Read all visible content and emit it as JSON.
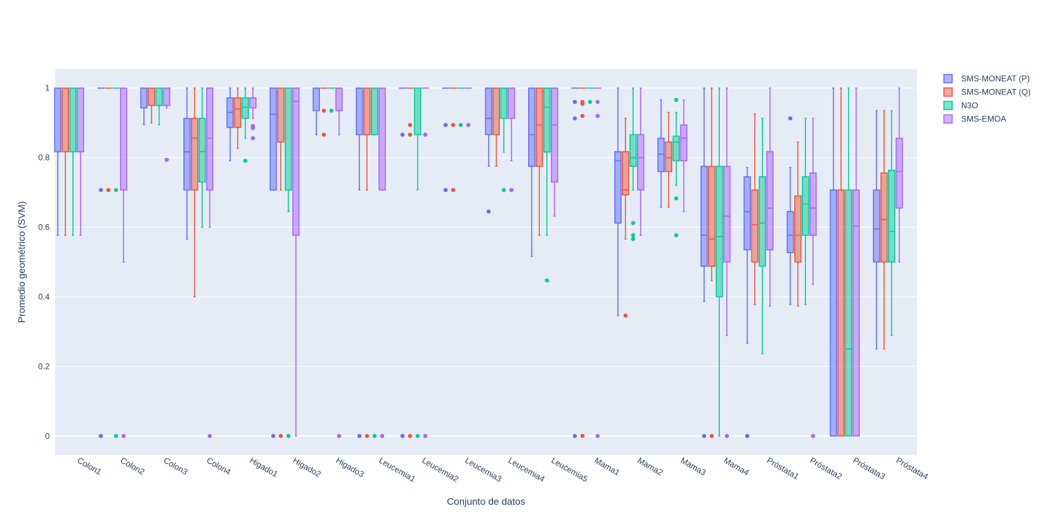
{
  "chart_data": {
    "type": "box",
    "xlabel": "Conjunto de datos",
    "ylabel": "Promedio geométrico (SVM)",
    "ylim": [
      -0.055,
      1.055
    ],
    "yticks": [
      0,
      0.2,
      0.4,
      0.6,
      0.8,
      1
    ],
    "ytick_labels": [
      "0",
      "0.2",
      "0.4",
      "0.6",
      "0.8",
      "1"
    ],
    "grid": true,
    "legend_position": "top-right",
    "categories": [
      "Colon1",
      "Colon2",
      "Colon3",
      "Colon4",
      "Higado1",
      "Higado2",
      "Higado3",
      "Leucemia1",
      "Leucemia2",
      "Leucemia3",
      "Leucemia4",
      "Leucemia5",
      "Mama1",
      "Mama2",
      "Mama3",
      "Mama4",
      "Próstata1",
      "Próstata2",
      "Próstata3",
      "Próstata4"
    ],
    "series": [
      {
        "name": "SMS-MONEAT (P)",
        "color": "#636efa",
        "boxes": [
          {
            "min": 0.577,
            "q1": 0.817,
            "median": 1,
            "q3": 1,
            "max": 1,
            "outliers": []
          },
          {
            "min": 1,
            "q1": 1,
            "median": 1,
            "q3": 1,
            "max": 1,
            "outliers": [
              0.707,
              0
            ]
          },
          {
            "min": 0.895,
            "q1": 0.943,
            "median": 1,
            "q3": 1,
            "max": 1,
            "outliers": []
          },
          {
            "min": 0.566,
            "q1": 0.707,
            "median": 0.817,
            "q3": 0.913,
            "max": 1,
            "outliers": []
          },
          {
            "min": 0.791,
            "q1": 0.887,
            "median": 0.93,
            "q3": 0.972,
            "max": 1,
            "outliers": []
          },
          {
            "min": 0.707,
            "q1": 0.707,
            "median": 0.925,
            "q3": 1,
            "max": 1,
            "outliers": [
              0
            ]
          },
          {
            "min": 0.866,
            "q1": 0.935,
            "median": 1,
            "q3": 1,
            "max": 1,
            "outliers": []
          },
          {
            "min": 0.707,
            "q1": 0.866,
            "median": 1,
            "q3": 1,
            "max": 1,
            "outliers": [
              0
            ]
          },
          {
            "min": 1,
            "q1": 1,
            "median": 1,
            "q3": 1,
            "max": 1,
            "outliers": [
              0.866,
              0
            ]
          },
          {
            "min": 1,
            "q1": 1,
            "median": 1,
            "q3": 1,
            "max": 1,
            "outliers": [
              0.894,
              0.707
            ]
          },
          {
            "min": 0.775,
            "q1": 0.866,
            "median": 0.913,
            "q3": 1,
            "max": 1,
            "outliers": [
              0.645
            ]
          },
          {
            "min": 0.516,
            "q1": 0.775,
            "median": 0.866,
            "q3": 1,
            "max": 1,
            "outliers": []
          },
          {
            "min": 1,
            "q1": 1,
            "median": 1,
            "q3": 1,
            "max": 1,
            "outliers": [
              0.96,
              0.913,
              0
            ]
          },
          {
            "min": 0.346,
            "q1": 0.612,
            "median": 0.791,
            "q3": 0.817,
            "max": 1,
            "outliers": []
          },
          {
            "min": 0.658,
            "q1": 0.76,
            "median": 0.81,
            "q3": 0.856,
            "max": 0.966,
            "outliers": []
          },
          {
            "min": 0.387,
            "q1": 0.488,
            "median": 0.577,
            "q3": 0.775,
            "max": 1,
            "outliers": [
              0
            ]
          },
          {
            "min": 0.267,
            "q1": 0.535,
            "median": 0.645,
            "q3": 0.745,
            "max": 0.772,
            "outliers": [
              0
            ]
          },
          {
            "min": 0.378,
            "q1": 0.527,
            "median": 0.577,
            "q3": 0.645,
            "max": 0.772,
            "outliers": [
              0.913
            ]
          },
          {
            "min": 0,
            "q1": 0,
            "median": 0.707,
            "q3": 0.707,
            "max": 1,
            "outliers": []
          },
          {
            "min": 0.25,
            "q1": 0.5,
            "median": 0.595,
            "q3": 0.707,
            "max": 0.935,
            "outliers": []
          }
        ]
      },
      {
        "name": "SMS-MONEAT (Q)",
        "color": "#ef553b",
        "boxes": [
          {
            "min": 0.577,
            "q1": 0.817,
            "median": 1,
            "q3": 1,
            "max": 1,
            "outliers": []
          },
          {
            "min": 1,
            "q1": 1,
            "median": 1,
            "q3": 1,
            "max": 1,
            "outliers": [
              0.707
            ]
          },
          {
            "min": 0.9,
            "q1": 0.95,
            "median": 1,
            "q3": 1,
            "max": 1,
            "outliers": []
          },
          {
            "min": 0.4,
            "q1": 0.707,
            "median": 0.856,
            "q3": 0.913,
            "max": 1,
            "outliers": []
          },
          {
            "min": 0.827,
            "q1": 0.887,
            "median": 0.94,
            "q3": 0.972,
            "max": 1,
            "outliers": []
          },
          {
            "min": 0.707,
            "q1": 0.845,
            "median": 1,
            "q3": 1,
            "max": 1,
            "outliers": [
              0
            ]
          },
          {
            "min": 1,
            "q1": 1,
            "median": 1,
            "q3": 1,
            "max": 1,
            "outliers": [
              0.935,
              0.866
            ]
          },
          {
            "min": 0.707,
            "q1": 0.866,
            "median": 1,
            "q3": 1,
            "max": 1,
            "outliers": [
              0
            ]
          },
          {
            "min": 1,
            "q1": 1,
            "median": 1,
            "q3": 1,
            "max": 1,
            "outliers": [
              0.894,
              0.866,
              0
            ]
          },
          {
            "min": 1,
            "q1": 1,
            "median": 1,
            "q3": 1,
            "max": 1,
            "outliers": [
              0.894,
              0.707
            ]
          },
          {
            "min": 0.775,
            "q1": 0.866,
            "median": 1,
            "q3": 1,
            "max": 1,
            "outliers": []
          },
          {
            "min": 0.577,
            "q1": 0.775,
            "median": 0.894,
            "q3": 1,
            "max": 1,
            "outliers": []
          },
          {
            "min": 1,
            "q1": 1,
            "median": 1,
            "q3": 1,
            "max": 1,
            "outliers": [
              0.96,
              0.955,
              0.92,
              0
            ]
          },
          {
            "min": 0.566,
            "q1": 0.693,
            "median": 0.707,
            "q3": 0.817,
            "max": 0.913,
            "outliers": [
              0.346
            ]
          },
          {
            "min": 0.658,
            "q1": 0.76,
            "median": 0.8,
            "q3": 0.845,
            "max": 0.93,
            "outliers": []
          },
          {
            "min": 0.447,
            "q1": 0.488,
            "median": 0.566,
            "q3": 0.775,
            "max": 1,
            "outliers": [
              0
            ]
          },
          {
            "min": 0.378,
            "q1": 0.5,
            "median": 0.607,
            "q3": 0.707,
            "max": 0.926,
            "outliers": []
          },
          {
            "min": 0.373,
            "q1": 0.5,
            "median": 0.577,
            "q3": 0.69,
            "max": 0.845,
            "outliers": []
          },
          {
            "min": 0,
            "q1": 0,
            "median": 0.707,
            "q3": 0.707,
            "max": 1,
            "outliers": []
          },
          {
            "min": 0.25,
            "q1": 0.5,
            "median": 0.622,
            "q3": 0.756,
            "max": 0.935,
            "outliers": []
          }
        ]
      },
      {
        "name": "N3O",
        "color": "#00cc96",
        "boxes": [
          {
            "min": 0.577,
            "q1": 0.817,
            "median": 1,
            "q3": 1,
            "max": 1,
            "outliers": []
          },
          {
            "min": 1,
            "q1": 1,
            "median": 1,
            "q3": 1,
            "max": 1,
            "outliers": [
              0.707,
              0
            ]
          },
          {
            "min": 0.895,
            "q1": 0.95,
            "median": 1,
            "q3": 1,
            "max": 1,
            "outliers": []
          },
          {
            "min": 0.6,
            "q1": 0.73,
            "median": 0.817,
            "q3": 0.913,
            "max": 1,
            "outliers": []
          },
          {
            "min": 0.856,
            "q1": 0.913,
            "median": 0.945,
            "q3": 0.972,
            "max": 1,
            "outliers": [
              0.791
            ]
          },
          {
            "min": 0.645,
            "q1": 0.707,
            "median": 1,
            "q3": 1,
            "max": 1,
            "outliers": [
              0
            ]
          },
          {
            "min": 1,
            "q1": 1,
            "median": 1,
            "q3": 1,
            "max": 1,
            "outliers": [
              0.935
            ]
          },
          {
            "min": 0.866,
            "q1": 0.866,
            "median": 1,
            "q3": 1,
            "max": 1,
            "outliers": [
              0
            ]
          },
          {
            "min": 0.707,
            "q1": 0.866,
            "median": 1,
            "q3": 1,
            "max": 1,
            "outliers": [
              0
            ]
          },
          {
            "min": 1,
            "q1": 1,
            "median": 1,
            "q3": 1,
            "max": 1,
            "outliers": [
              0.894
            ]
          },
          {
            "min": 0.816,
            "q1": 0.913,
            "median": 1,
            "q3": 1,
            "max": 1,
            "outliers": [
              0.707
            ]
          },
          {
            "min": 0.577,
            "q1": 0.816,
            "median": 0.945,
            "q3": 1,
            "max": 1,
            "outliers": [
              0.447
            ]
          },
          {
            "min": 1,
            "q1": 1,
            "median": 1,
            "q3": 1,
            "max": 1,
            "outliers": [
              0.96
            ]
          },
          {
            "min": 0.707,
            "q1": 0.775,
            "median": 0.8,
            "q3": 0.866,
            "max": 1,
            "outliers": [
              0.612,
              0.577,
              0.566
            ]
          },
          {
            "min": 0.72,
            "q1": 0.791,
            "median": 0.845,
            "q3": 0.862,
            "max": 0.93,
            "outliers": [
              0.966,
              0.683,
              0.577
            ]
          },
          {
            "min": 0,
            "q1": 0.4,
            "median": 0.573,
            "q3": 0.775,
            "max": 1,
            "outliers": []
          },
          {
            "min": 0.236,
            "q1": 0.488,
            "median": 0.612,
            "q3": 0.745,
            "max": 0.913,
            "outliers": []
          },
          {
            "min": 0.378,
            "q1": 0.577,
            "median": 0.667,
            "q3": 0.745,
            "max": 0.913,
            "outliers": []
          },
          {
            "min": 0,
            "q1": 0,
            "median": 0.25,
            "q3": 0.707,
            "max": 1,
            "outliers": []
          },
          {
            "min": 0.289,
            "q1": 0.5,
            "median": 0.588,
            "q3": 0.764,
            "max": 0.935,
            "outliers": []
          }
        ]
      },
      {
        "name": "SMS-EMOA",
        "color": "#ab63fa",
        "boxes": [
          {
            "min": 0.577,
            "q1": 0.817,
            "median": 1,
            "q3": 1,
            "max": 1,
            "outliers": []
          },
          {
            "min": 0.5,
            "q1": 0.707,
            "median": 1,
            "q3": 1,
            "max": 1,
            "outliers": [
              0
            ]
          },
          {
            "min": 0.943,
            "q1": 0.95,
            "median": 1,
            "q3": 1,
            "max": 1,
            "outliers": [
              0.794
            ]
          },
          {
            "min": 0.6,
            "q1": 0.707,
            "median": 0.856,
            "q3": 1,
            "max": 1,
            "outliers": [
              0
            ]
          },
          {
            "min": 0.913,
            "q1": 0.943,
            "median": 0.972,
            "q3": 0.972,
            "max": 1,
            "outliers": [
              0.891,
              0.885,
              0.856
            ]
          },
          {
            "min": 0,
            "q1": 0.577,
            "median": 0.962,
            "q3": 1,
            "max": 1,
            "outliers": []
          },
          {
            "min": 0.866,
            "q1": 0.935,
            "median": 1,
            "q3": 1,
            "max": 1,
            "outliers": [
              0
            ]
          },
          {
            "min": 0.707,
            "q1": 0.707,
            "median": 1,
            "q3": 1,
            "max": 1,
            "outliers": [
              0
            ]
          },
          {
            "min": 1,
            "q1": 1,
            "median": 1,
            "q3": 1,
            "max": 1,
            "outliers": [
              0.866,
              0
            ]
          },
          {
            "min": 1,
            "q1": 1,
            "median": 1,
            "q3": 1,
            "max": 1,
            "outliers": [
              0.894
            ]
          },
          {
            "min": 0.791,
            "q1": 0.913,
            "median": 1,
            "q3": 1,
            "max": 1,
            "outliers": [
              0.707
            ]
          },
          {
            "min": 0.632,
            "q1": 0.73,
            "median": 0.894,
            "q3": 1,
            "max": 1,
            "outliers": []
          },
          {
            "min": 1,
            "q1": 1,
            "median": 1,
            "q3": 1,
            "max": 1,
            "outliers": [
              0.96,
              0.92,
              0
            ]
          },
          {
            "min": 0.577,
            "q1": 0.707,
            "median": 0.8,
            "q3": 0.866,
            "max": 1,
            "outliers": []
          },
          {
            "min": 0.645,
            "q1": 0.791,
            "median": 0.856,
            "q3": 0.894,
            "max": 0.966,
            "outliers": []
          },
          {
            "min": 0.289,
            "q1": 0.5,
            "median": 0.632,
            "q3": 0.775,
            "max": 1,
            "outliers": [
              0
            ]
          },
          {
            "min": 0.373,
            "q1": 0.535,
            "median": 0.655,
            "q3": 0.817,
            "max": 1,
            "outliers": []
          },
          {
            "min": 0.436,
            "q1": 0.577,
            "median": 0.655,
            "q3": 0.756,
            "max": 0.913,
            "outliers": [
              0
            ]
          },
          {
            "min": 0,
            "q1": 0,
            "median": 0.603,
            "q3": 0.707,
            "max": 1,
            "outliers": []
          },
          {
            "min": 0.5,
            "q1": 0.655,
            "median": 0.76,
            "q3": 0.856,
            "max": 1,
            "outliers": []
          }
        ]
      }
    ]
  }
}
